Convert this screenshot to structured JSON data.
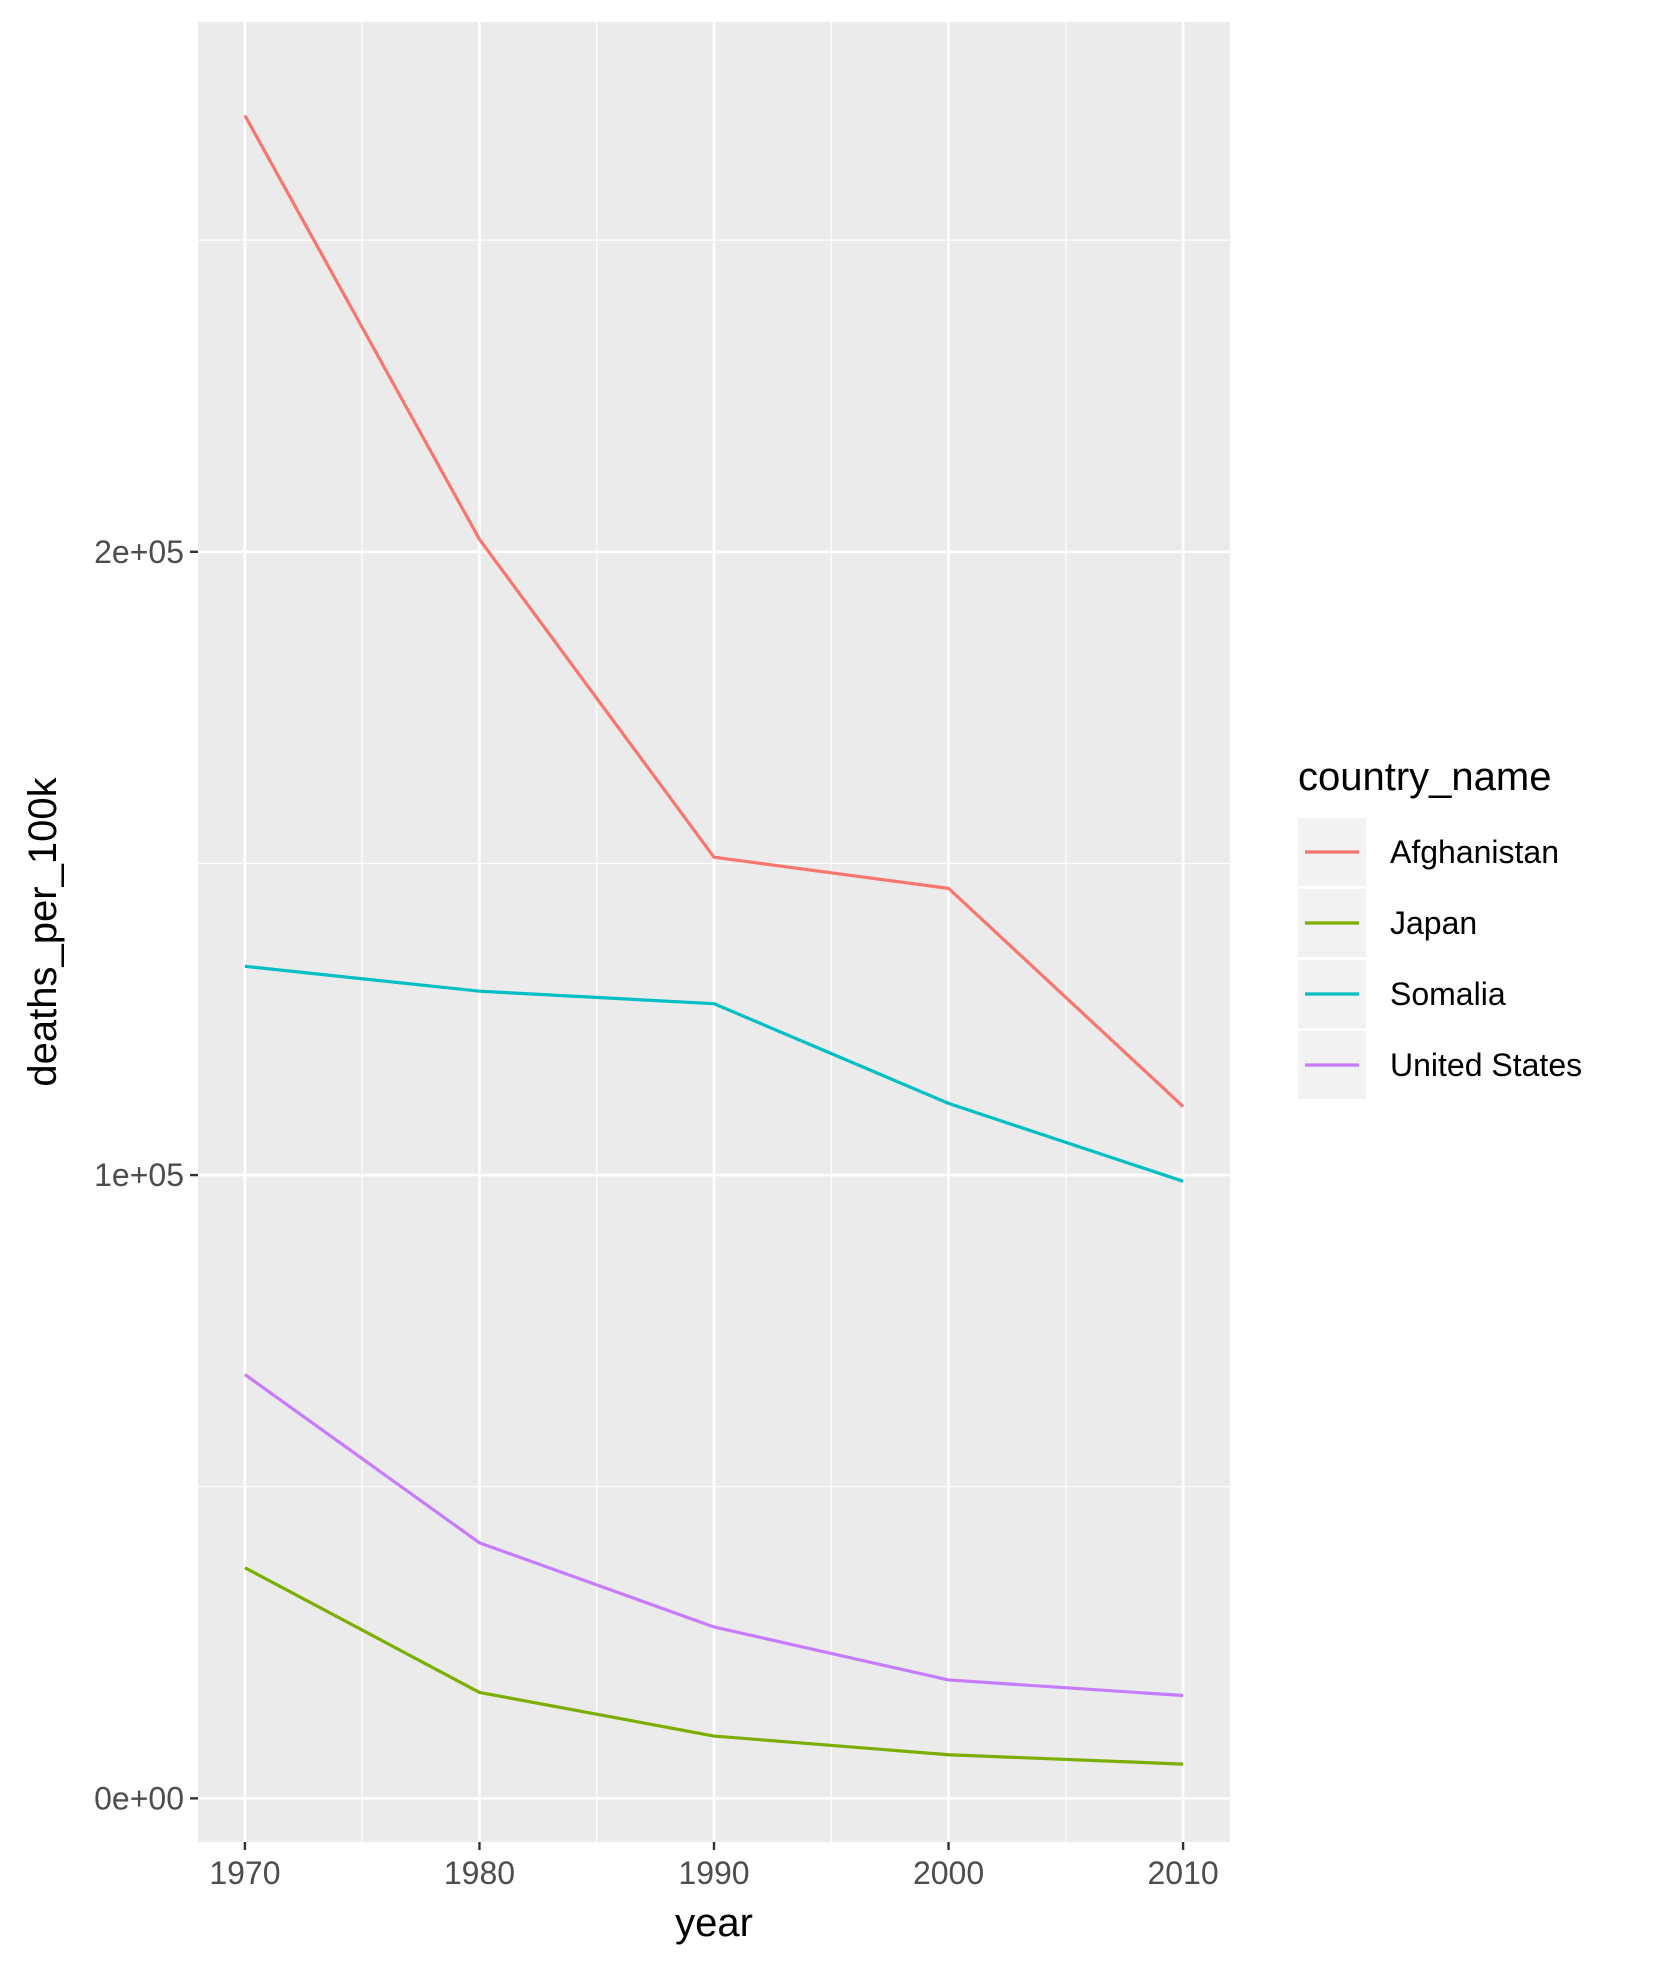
{
  "chart_data": {
    "type": "line",
    "xlabel": "year",
    "ylabel": "deaths_per_100k",
    "x": [
      1970,
      1980,
      1990,
      2000,
      2010
    ],
    "x_ticks": [
      1970,
      1980,
      1990,
      2000,
      2010
    ],
    "x_tick_labels": [
      "1970",
      "1980",
      "1990",
      "2000",
      "2010"
    ],
    "x_minor_ticks": [
      1975,
      1985,
      1995,
      2005
    ],
    "y_ticks": [
      0,
      100000,
      200000
    ],
    "y_tick_labels": [
      "0e+00",
      "1e+05",
      "2e+05"
    ],
    "y_minor_ticks": [
      50000,
      150000,
      250000
    ],
    "xlim": [
      1968,
      2012
    ],
    "ylim": [
      -7000,
      285000
    ],
    "grid": true,
    "legend": {
      "title": "country_name",
      "position": "right"
    },
    "series": [
      {
        "name": "Afghanistan",
        "color": "#F8766D",
        "values": [
          270000,
          202000,
          151000,
          146000,
          111000
        ]
      },
      {
        "name": "Japan",
        "color": "#7CAE00",
        "values": [
          37000,
          17000,
          10000,
          7000,
          5500
        ]
      },
      {
        "name": "Somalia",
        "color": "#00BFC4",
        "values": [
          133500,
          129500,
          127500,
          111500,
          99000
        ]
      },
      {
        "name": "United States",
        "color": "#C77CFF",
        "values": [
          68000,
          41000,
          27500,
          19000,
          16500
        ]
      }
    ]
  }
}
